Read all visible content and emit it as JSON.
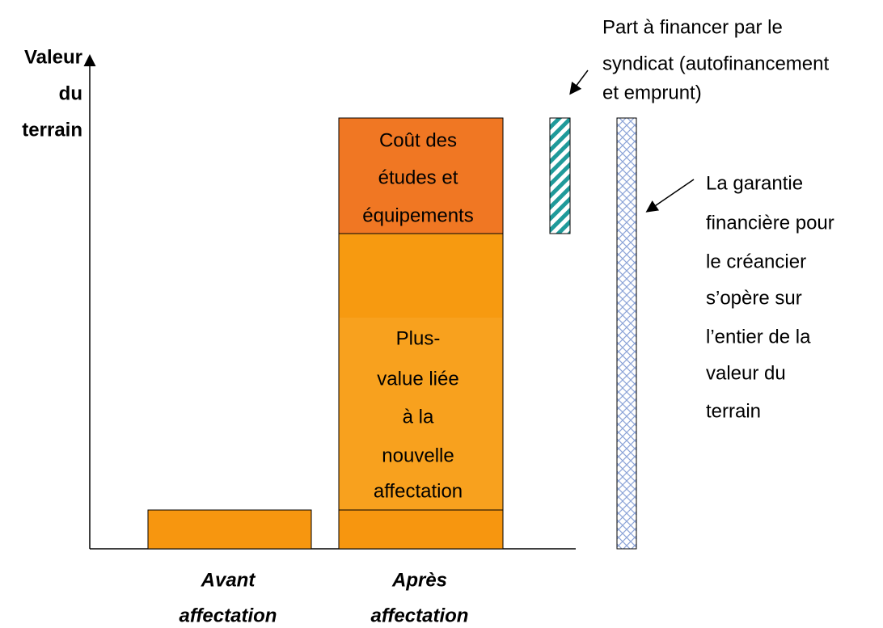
{
  "y_axis_label": [
    "Valeur",
    "du",
    "terrain"
  ],
  "boxes": {
    "cost": [
      "Coût des",
      "études et",
      "équipements"
    ],
    "plus_value": [
      "Plus-",
      "value liée",
      "à la",
      "nouvelle",
      "affectation"
    ]
  },
  "categories": [
    [
      "Avant",
      "affectation"
    ],
    [
      "Après",
      "affectation"
    ]
  ],
  "annotations": {
    "part": [
      "Part à financer par le",
      "syndicat (autofinancement",
      "et emprunt)"
    ],
    "garantie": [
      "La garantie",
      "financière pour",
      "le créancier",
      "s’opère sur",
      "l’entier de la",
      "valeur du",
      "terrain"
    ]
  }
}
